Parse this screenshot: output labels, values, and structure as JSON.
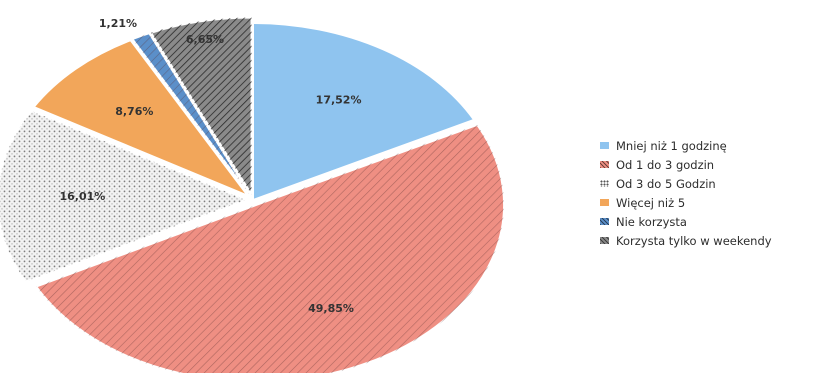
{
  "chart_data": {
    "type": "pie",
    "title": "",
    "legend_position": "right",
    "slices": [
      {
        "label": "Mniej niż 1 godzinę",
        "value": 17.52,
        "value_label": "17,52%",
        "color": "#8fc4ef",
        "pattern": "none"
      },
      {
        "label": "Od 1 do 3 godzin",
        "value": 49.85,
        "value_label": "49,85%",
        "color": "#ef8f83",
        "pattern": "hatch"
      },
      {
        "label": "Od 3 do 5 Godzin",
        "value": 16.01,
        "value_label": "16,01%",
        "color": "#f2f2f2",
        "pattern": "dots"
      },
      {
        "label": "Więcej niż 5",
        "value": 8.76,
        "value_label": "8,76%",
        "color": "#f2a65a",
        "pattern": "none"
      },
      {
        "label": "Nie korzysta",
        "value": 1.21,
        "value_label": "1,21%",
        "color": "#5b8fc9",
        "pattern": "hatch"
      },
      {
        "label": "Korzysta tylko w weekendy",
        "value": 6.65,
        "value_label": "6,65%",
        "color": "#8a8a8a",
        "pattern": "hatch-dark"
      }
    ]
  }
}
